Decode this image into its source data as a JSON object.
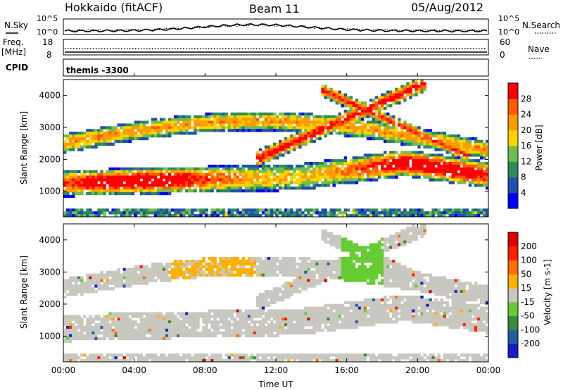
{
  "header": {
    "station": "Hokkaido (fitACF)",
    "beam": "Beam 11",
    "date": "05/Aug/2012"
  },
  "top_panels": {
    "nsky_label": "N.Sky",
    "nsky_ticks": [
      "10^5",
      "10^0"
    ],
    "nsearch_label": "N.Search",
    "nsearch_ticks": [
      "10^5",
      "10^0"
    ],
    "freq_label": "Freq.",
    "freq_unit": "[MHz]",
    "freq_ticks": [
      "18",
      "8"
    ],
    "nave_label": "Nave",
    "nave_ticks": [
      "60",
      "0"
    ],
    "cpid_label": "CPID",
    "cpid_value": "themis -3300"
  },
  "chart_data": [
    {
      "type": "heatmap",
      "name": "power",
      "ylabel": "Slant Range [km]",
      "yticks": [
        "4000",
        "3000",
        "2000",
        "1000"
      ],
      "ylim": [
        200,
        4500
      ],
      "colorbar_label": "Power [dB]",
      "colorbar_ticks": [
        "28",
        "24",
        "20",
        "16",
        "12",
        "8",
        "4"
      ],
      "colors": [
        "#0000ff",
        "#2050b0",
        "#2e8b57",
        "#6fbf4f",
        "#ffd200",
        "#ff9a00",
        "#ff5a00",
        "#ff0000"
      ]
    },
    {
      "type": "heatmap",
      "name": "velocity",
      "ylabel": "Slant Range [km]",
      "yticks": [
        "4000",
        "3000",
        "2000",
        "1000"
      ],
      "ylim": [
        200,
        4500
      ],
      "colorbar_label": "Velocity [m s-1]",
      "colorbar_ticks": [
        "200",
        "100",
        "50",
        "15",
        "-15",
        "-50",
        "-100",
        "-200"
      ],
      "colors": [
        "#1a1acc",
        "#2060a0",
        "#3a8a3a",
        "#66cc33",
        "#c8c8c0",
        "#ffb000",
        "#ff7000",
        "#ff2000",
        "#e00000"
      ]
    }
  ],
  "time_axis": {
    "ticks": [
      "00:00",
      "04:00",
      "08:00",
      "12:00",
      "16:00",
      "20:00",
      "00:00"
    ],
    "label": "Time UT"
  }
}
